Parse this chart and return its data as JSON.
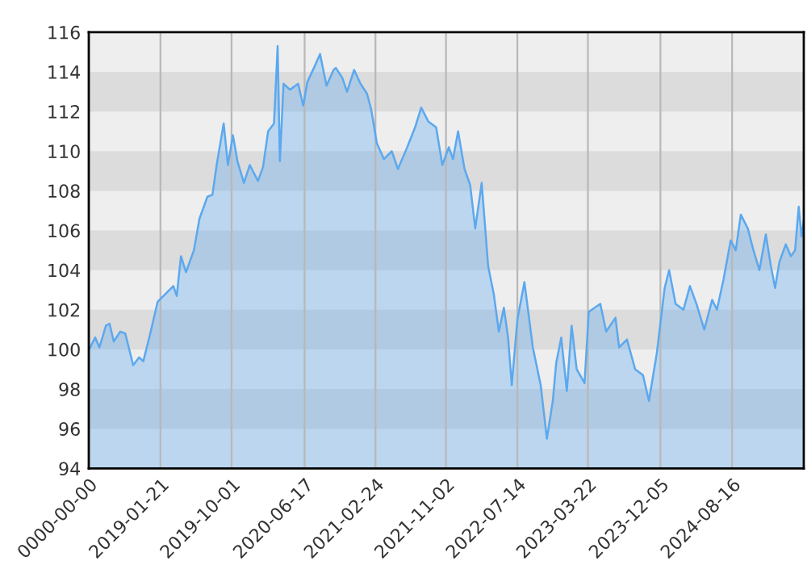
{
  "chart_data": {
    "type": "area",
    "x": [
      "2018-05-11",
      "2018-05-16",
      "2018-06-03",
      "2018-06-18",
      "2018-07-11",
      "2018-07-24",
      "2018-08-08",
      "2018-08-31",
      "2018-09-18",
      "2018-10-16",
      "2018-11-06",
      "2018-11-21",
      "2018-12-14",
      "2019-01-11",
      "2019-02-08",
      "2019-03-08",
      "2019-03-20",
      "2019-04-04",
      "2019-04-22",
      "2019-05-20",
      "2019-06-09",
      "2019-07-07",
      "2019-07-25",
      "2019-08-09",
      "2019-09-03",
      "2019-09-18",
      "2019-10-06",
      "2019-10-22",
      "2019-11-14",
      "2019-12-05",
      "2020-01-03",
      "2020-01-21",
      "2020-02-08",
      "2020-02-29",
      "2020-03-13",
      "2020-03-21",
      "2020-04-03",
      "2020-04-26",
      "2020-05-25",
      "2020-06-12",
      "2020-06-27",
      "2020-07-20",
      "2020-08-11",
      "2020-09-03",
      "2020-09-28",
      "2020-10-06",
      "2020-10-29",
      "2020-11-15",
      "2020-12-10",
      "2021-01-02",
      "2021-01-25",
      "2021-02-09",
      "2021-03-01",
      "2021-03-26",
      "2021-04-23",
      "2021-05-15",
      "2021-06-17",
      "2021-07-15",
      "2021-08-06",
      "2021-08-31",
      "2021-09-28",
      "2021-10-20",
      "2021-11-12",
      "2021-11-27",
      "2021-12-15",
      "2022-01-07",
      "2022-01-27",
      "2022-02-14",
      "2022-03-09",
      "2022-04-01",
      "2022-04-21",
      "2022-05-09",
      "2022-05-27",
      "2022-06-11",
      "2022-06-24",
      "2022-07-14",
      "2022-08-08",
      "2022-09-07",
      "2022-10-05",
      "2022-10-27",
      "2022-11-17",
      "2022-11-29",
      "2022-12-17",
      "2023-01-06",
      "2023-01-23",
      "2023-02-10",
      "2023-03-10",
      "2023-03-25",
      "2023-05-05",
      "2023-05-26",
      "2023-06-28",
      "2023-07-11",
      "2023-08-08",
      "2023-09-06",
      "2023-10-04",
      "2023-10-25",
      "2023-11-22",
      "2023-12-20",
      "2024-01-05",
      "2024-01-28",
      "2024-02-25",
      "2024-03-19",
      "2024-04-11",
      "2024-05-09",
      "2024-06-06",
      "2024-06-23",
      "2024-07-16",
      "2024-08-11",
      "2024-08-29",
      "2024-09-16",
      "2024-10-11",
      "2024-10-29",
      "2024-11-21",
      "2024-12-14",
      "2025-01-01",
      "2025-01-16",
      "2025-01-31",
      "2025-02-23",
      "2025-03-13",
      "2025-03-28",
      "2025-04-10",
      "2025-04-20",
      "2025-04-28"
    ],
    "series": [
      {
        "color": "#5ba8ef",
        "values": [
          100.0,
          100.1,
          100.6,
          100.1,
          101.2,
          101.3,
          100.4,
          100.9,
          100.8,
          99.2,
          99.6,
          99.4,
          100.7,
          102.4,
          102.8,
          103.2,
          102.7,
          104.7,
          103.9,
          105.0,
          106.6,
          107.7,
          107.8,
          109.3,
          111.4,
          109.3,
          110.8,
          109.5,
          108.4,
          109.3,
          108.5,
          109.2,
          111.0,
          111.4,
          115.3,
          109.5,
          113.4,
          113.1,
          113.4,
          112.3,
          113.5,
          114.2,
          114.9,
          113.3,
          114.1,
          114.2,
          113.7,
          113.0,
          114.1,
          113.4,
          112.9,
          112.1,
          110.4,
          109.6,
          110.0,
          109.1,
          110.2,
          111.2,
          112.2,
          111.5,
          111.2,
          109.3,
          110.2,
          109.6,
          111.0,
          109.1,
          108.3,
          106.1,
          108.4,
          104.2,
          102.8,
          100.9,
          102.1,
          100.6,
          98.2,
          101.5,
          103.4,
          100.1,
          98.2,
          95.5,
          97.4,
          99.3,
          100.6,
          97.9,
          101.2,
          99.0,
          98.3,
          101.9,
          102.3,
          100.9,
          101.6,
          100.1,
          100.5,
          99.0,
          98.7,
          97.4,
          99.8,
          103.1,
          104.0,
          102.3,
          102.0,
          103.2,
          102.3,
          101.0,
          102.5,
          102.0,
          103.5,
          105.5,
          105.0,
          106.8,
          106.1,
          105.1,
          104.0,
          105.8,
          104.2,
          103.1,
          104.4,
          105.3,
          104.7,
          105.0,
          107.2,
          105.7,
          106.5
        ]
      }
    ],
    "xlim": [
      "2018-05-11",
      "2025-04-28"
    ],
    "xticks": [
      {
        "value": "2018-05-11",
        "label": "0000-00-00"
      },
      "2019-01-21",
      "2019-10-01",
      "2020-06-17",
      "2021-02-24",
      "2021-11-02",
      "2022-07-14",
      "2023-03-22",
      "2023-12-05",
      "2024-08-16"
    ],
    "ylim": [
      94,
      116
    ],
    "yticks": [
      94,
      96,
      98,
      100,
      102,
      104,
      106,
      108,
      110,
      112,
      114,
      116
    ],
    "grid": "x",
    "bands": [
      {
        "axis": "y",
        "from": 96,
        "to": 98,
        "color": "#dcdcdc"
      },
      {
        "axis": "y",
        "from": 100,
        "to": 102,
        "color": "#dcdcdc"
      },
      {
        "axis": "y",
        "from": 104,
        "to": 106,
        "color": "#dcdcdc"
      },
      {
        "axis": "y",
        "from": 108,
        "to": 110,
        "color": "#dcdcdc"
      },
      {
        "axis": "y",
        "from": 112,
        "to": 114,
        "color": "#dcdcdc"
      }
    ]
  }
}
